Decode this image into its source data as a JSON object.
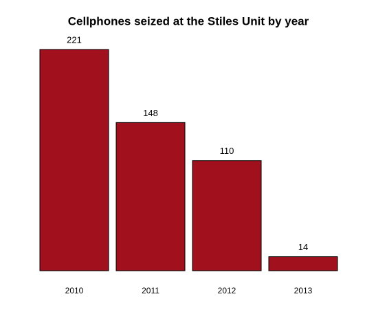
{
  "chart_data": {
    "type": "bar",
    "title": "Cellphones seized at the Stiles Unit by year",
    "categories": [
      "2010",
      "2011",
      "2012",
      "2013"
    ],
    "values": [
      221,
      148,
      110,
      14
    ],
    "color": "#a0111d"
  }
}
